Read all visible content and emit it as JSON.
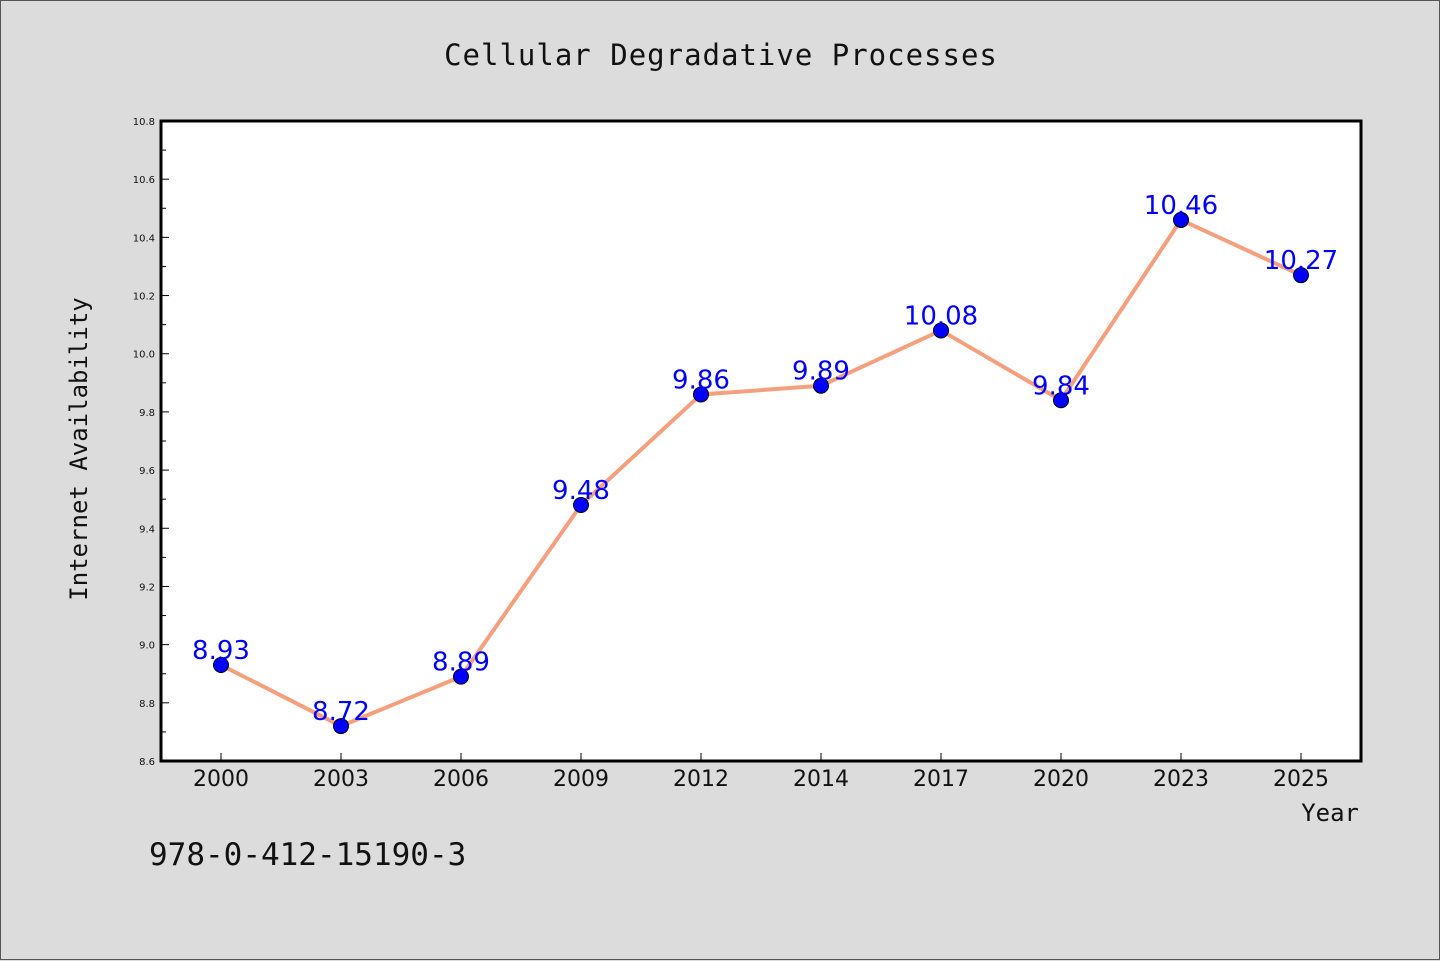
{
  "chart_data": {
    "type": "line",
    "title": "Cellular Degradative Processes",
    "xlabel": "Year",
    "ylabel": "Internet Availability",
    "categories": [
      "2000",
      "2003",
      "2006",
      "2009",
      "2012",
      "2014",
      "2017",
      "2020",
      "2023",
      "2025"
    ],
    "series": [
      {
        "values": [
          8.93,
          8.72,
          8.89,
          9.48,
          9.86,
          9.89,
          10.08,
          9.84,
          10.46,
          10.27
        ],
        "data_labels": [
          "8.93",
          "8.72",
          "8.89",
          "9.48",
          "9.86",
          "9.89",
          "10.08",
          "9.84",
          "10.46",
          "10.27"
        ],
        "line_color": "#f4a07e",
        "marker_color": "#0000ff",
        "label_color": "#0000ff"
      }
    ],
    "ylim": [
      8.6,
      10.8
    ],
    "yticks": [
      "8.6",
      "8.8",
      "9.0",
      "9.2",
      "9.4",
      "9.6",
      "9.8",
      "10.0",
      "10.2",
      "10.4",
      "10.6",
      "10.8"
    ],
    "grid": false,
    "legend": "none"
  },
  "annotations": {
    "isbn": "978-0-412-15190-3"
  },
  "colors": {
    "figure_background": "#dcdcdc",
    "plot_background": "#ffffff",
    "axis": "#000000"
  }
}
